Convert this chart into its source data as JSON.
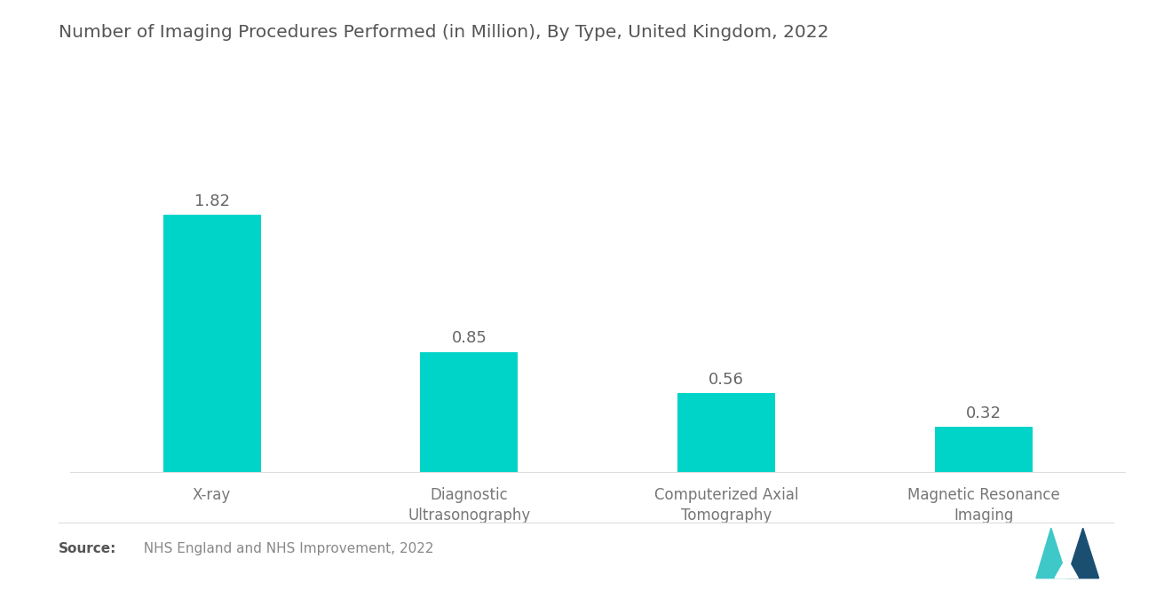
{
  "title": "Number of Imaging Procedures Performed (in Million), By Type, United Kingdom, 2022",
  "categories": [
    "X-ray",
    "Diagnostic\nUltrasonography",
    "Computerized Axial\nTomography",
    "Magnetic Resonance\nImaging"
  ],
  "values": [
    1.82,
    0.85,
    0.56,
    0.32
  ],
  "bar_color": "#00D4C8",
  "value_labels": [
    "1.82",
    "0.85",
    "0.56",
    "0.32"
  ],
  "ylim": [
    0,
    2.8
  ],
  "source_bold": "Source:",
  "source_text": "  NHS England and NHS Improvement, 2022",
  "background_color": "#ffffff",
  "title_color": "#555555",
  "bar_label_color": "#666666",
  "tick_label_color": "#777777",
  "title_fontsize": 14.5,
  "bar_label_fontsize": 13,
  "tick_label_fontsize": 12,
  "source_fontsize": 11,
  "bar_width": 0.38
}
